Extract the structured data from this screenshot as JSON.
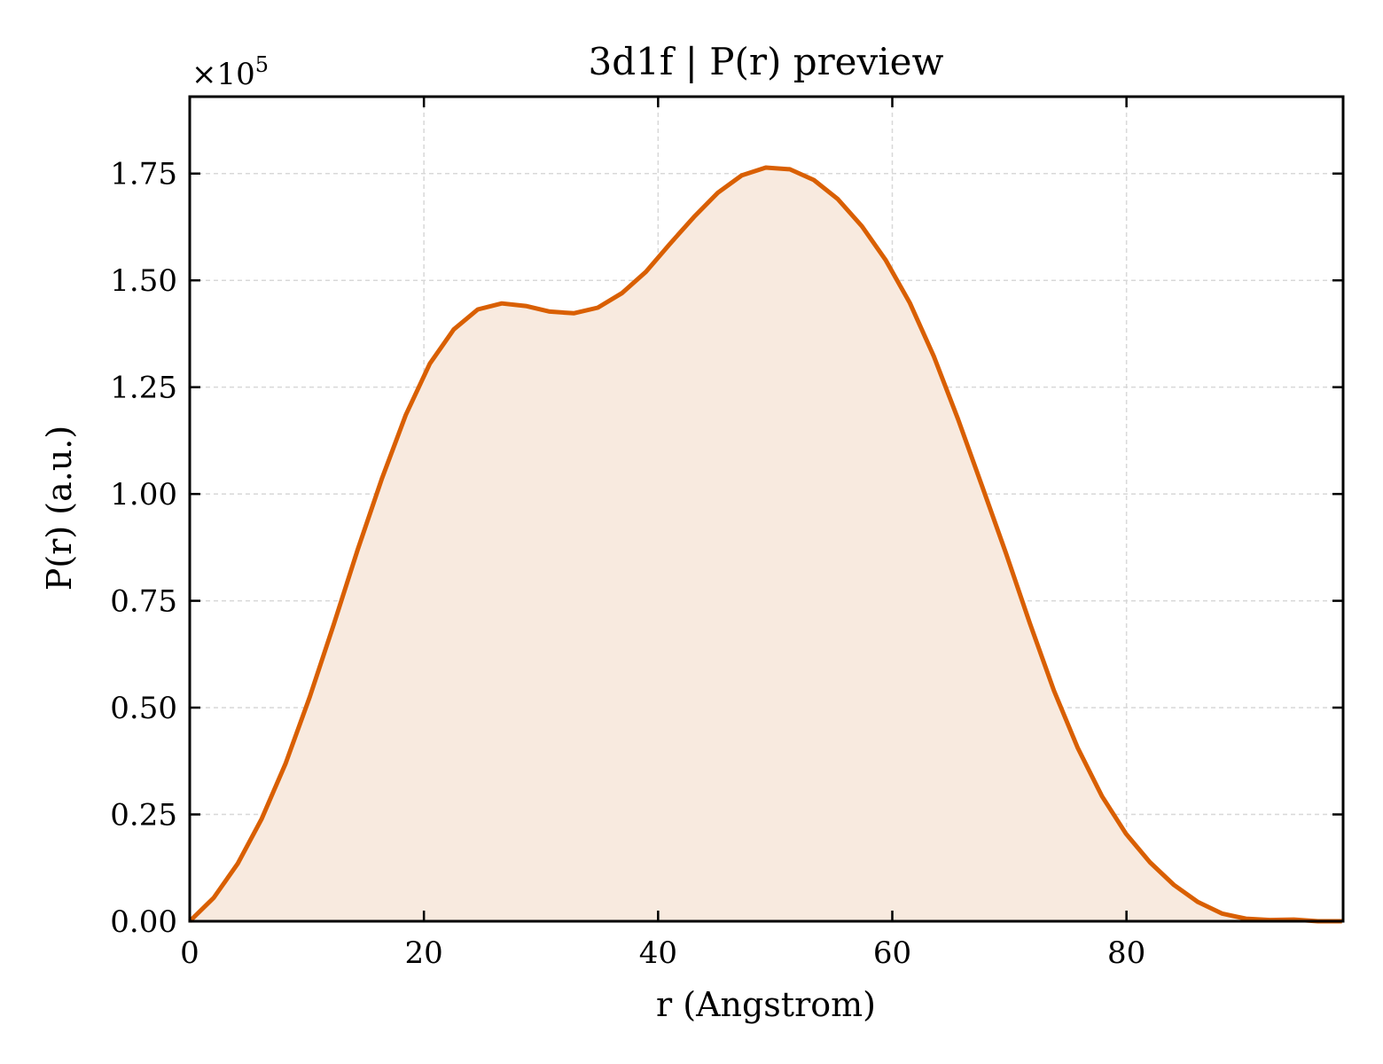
{
  "chart_data": {
    "type": "area",
    "title": "3d1f | P(r) preview",
    "xlabel": "r (Angstrom)",
    "ylabel": "P(r) (a.u.)",
    "y_offset_text": "×10",
    "y_offset_exponent": "5",
    "xlim": [
      0,
      98.5
    ],
    "ylim": [
      0,
      1.93
    ],
    "grid": true,
    "x_ticks": [
      0,
      20,
      40,
      60,
      80
    ],
    "x_tick_labels": [
      "0",
      "20",
      "40",
      "60",
      "80"
    ],
    "y_ticks": [
      0,
      0.25,
      0.5,
      0.75,
      1.0,
      1.25,
      1.5,
      1.75
    ],
    "y_tick_labels": [
      "0.00",
      "0.25",
      "0.50",
      "0.75",
      "1.00",
      "1.25",
      "1.50",
      "1.75"
    ],
    "colors": {
      "line": "#d95f02",
      "fill": "#f8eadf",
      "grid": "#d8d8d8"
    },
    "series": [
      {
        "x": [
          0,
          2.05,
          4.1,
          6.15,
          8.2,
          10.25,
          12.3,
          14.35,
          16.4,
          18.45,
          20.5,
          22.55,
          24.6,
          26.65,
          28.7,
          30.75,
          32.8,
          34.85,
          36.9,
          38.95,
          41.0,
          43.05,
          45.1,
          47.15,
          49.2,
          51.25,
          53.3,
          55.35,
          57.4,
          59.45,
          61.5,
          63.55,
          65.6,
          67.65,
          69.7,
          71.75,
          73.8,
          75.85,
          77.9,
          79.95,
          82.0,
          84.05,
          86.1,
          88.15,
          90.2,
          92.25,
          94.3,
          96.35,
          98.4
        ],
        "y": [
          0.0,
          0.055,
          0.135,
          0.24,
          0.37,
          0.525,
          0.695,
          0.87,
          1.035,
          1.185,
          1.305,
          1.385,
          1.432,
          1.446,
          1.44,
          1.427,
          1.423,
          1.436,
          1.47,
          1.52,
          1.585,
          1.648,
          1.705,
          1.746,
          1.764,
          1.76,
          1.735,
          1.69,
          1.627,
          1.547,
          1.447,
          1.322,
          1.176,
          1.02,
          0.862,
          0.697,
          0.54,
          0.405,
          0.293,
          0.205,
          0.138,
          0.085,
          0.045,
          0.018,
          0.006,
          0.003,
          0.004,
          0.0,
          0.0
        ]
      }
    ]
  }
}
